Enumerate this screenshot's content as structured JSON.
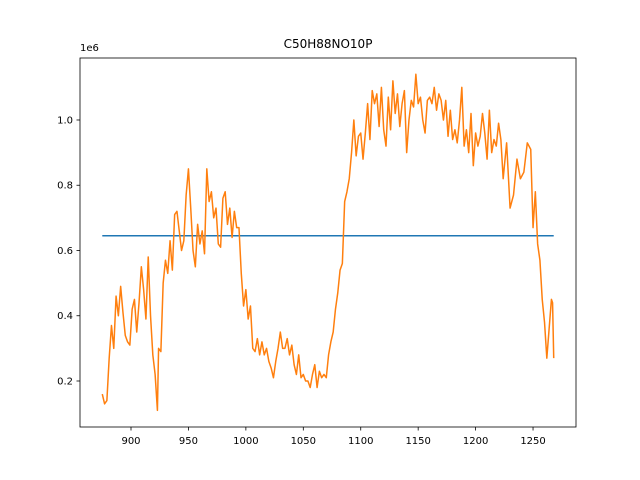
{
  "chart_data": {
    "type": "line",
    "title": "C50H88NO10P",
    "y_offset_label": "1e6",
    "xlim": [
      855.6,
      1287.4
    ],
    "xticks": [
      900,
      950,
      1000,
      1050,
      1100,
      1150,
      1200,
      1250
    ],
    "ylim": [
      0.059,
      1.19
    ],
    "yticks": [
      0.2,
      0.4,
      0.6,
      0.8,
      {
        "value": 1,
        "label": "1.0"
      }
    ],
    "grid": false,
    "series": [
      {
        "color": "#1f77b4",
        "x": [
          875,
          1268
        ],
        "values": [
          0.645,
          0.645
        ]
      },
      {
        "color": "#ff7f0e",
        "x": [
          875,
          877,
          879,
          881,
          883,
          885,
          887,
          889,
          891,
          893,
          895,
          897,
          899,
          901,
          903,
          905,
          907,
          909,
          911,
          913,
          915,
          917,
          919,
          921,
          923,
          924,
          926,
          928,
          930,
          932,
          934,
          936,
          938,
          940,
          942,
          944,
          946,
          948,
          950,
          952,
          954,
          956,
          958,
          960,
          962,
          964,
          966,
          968,
          970,
          972,
          974,
          976,
          978,
          980,
          982,
          984,
          986,
          988,
          990,
          992,
          994,
          996,
          998,
          1000,
          1002,
          1004,
          1006,
          1008,
          1010,
          1012,
          1014,
          1016,
          1018,
          1020,
          1022,
          1024,
          1026,
          1028,
          1030,
          1032,
          1034,
          1036,
          1038,
          1040,
          1042,
          1044,
          1046,
          1048,
          1050,
          1052,
          1054,
          1056,
          1058,
          1060,
          1062,
          1064,
          1066,
          1068,
          1070,
          1072,
          1074,
          1076,
          1078,
          1080,
          1082,
          1084,
          1086,
          1088,
          1090,
          1092,
          1094,
          1096,
          1098,
          1100,
          1102,
          1104,
          1106,
          1108,
          1110,
          1112,
          1114,
          1116,
          1118,
          1120,
          1122,
          1124,
          1126,
          1128,
          1130,
          1132,
          1134,
          1136,
          1138,
          1140,
          1142,
          1144,
          1146,
          1148,
          1150,
          1152,
          1154,
          1156,
          1158,
          1160,
          1162,
          1164,
          1166,
          1168,
          1170,
          1172,
          1174,
          1176,
          1178,
          1180,
          1182,
          1184,
          1186,
          1188,
          1190,
          1192,
          1194,
          1196,
          1198,
          1200,
          1202,
          1204,
          1206,
          1208,
          1210,
          1212,
          1214,
          1216,
          1218,
          1220,
          1222,
          1224,
          1227,
          1230,
          1233,
          1236,
          1239,
          1242,
          1245,
          1248,
          1250,
          1252,
          1254,
          1256,
          1258,
          1260,
          1262,
          1264,
          1266,
          1267,
          1268
        ],
        "values": [
          0.16,
          0.13,
          0.14,
          0.27,
          0.37,
          0.3,
          0.46,
          0.4,
          0.49,
          0.41,
          0.34,
          0.32,
          0.31,
          0.42,
          0.45,
          0.35,
          0.44,
          0.55,
          0.48,
          0.39,
          0.58,
          0.4,
          0.28,
          0.22,
          0.11,
          0.3,
          0.29,
          0.5,
          0.57,
          0.53,
          0.63,
          0.54,
          0.71,
          0.72,
          0.66,
          0.6,
          0.63,
          0.77,
          0.85,
          0.73,
          0.6,
          0.55,
          0.68,
          0.62,
          0.66,
          0.59,
          0.85,
          0.75,
          0.78,
          0.7,
          0.73,
          0.62,
          0.61,
          0.76,
          0.78,
          0.68,
          0.73,
          0.64,
          0.72,
          0.67,
          0.67,
          0.53,
          0.43,
          0.48,
          0.39,
          0.43,
          0.3,
          0.29,
          0.33,
          0.28,
          0.32,
          0.28,
          0.3,
          0.26,
          0.24,
          0.21,
          0.26,
          0.3,
          0.35,
          0.3,
          0.3,
          0.33,
          0.28,
          0.31,
          0.25,
          0.22,
          0.28,
          0.21,
          0.22,
          0.2,
          0.2,
          0.18,
          0.22,
          0.25,
          0.18,
          0.23,
          0.21,
          0.22,
          0.21,
          0.28,
          0.32,
          0.35,
          0.42,
          0.47,
          0.54,
          0.56,
          0.75,
          0.78,
          0.82,
          0.9,
          1.0,
          0.89,
          0.95,
          0.96,
          0.88,
          0.96,
          1.05,
          0.94,
          1.09,
          1.05,
          1.08,
          0.98,
          1.1,
          0.97,
          0.92,
          1.07,
          0.97,
          1.12,
          1.02,
          1.08,
          0.98,
          1.05,
          1.09,
          0.9,
          1.0,
          1.06,
          1.04,
          1.14,
          1.05,
          1.07,
          1.0,
          0.96,
          1.06,
          1.07,
          1.05,
          1.1,
          1.03,
          1.08,
          1.06,
          1.0,
          1.06,
          0.95,
          1.03,
          0.94,
          0.97,
          0.93,
          1.0,
          1.1,
          0.92,
          0.97,
          0.9,
          1.02,
          0.86,
          0.96,
          0.92,
          0.95,
          1.02,
          0.96,
          0.88,
          1.03,
          0.9,
          0.94,
          0.92,
          0.99,
          0.94,
          0.82,
          0.93,
          0.73,
          0.77,
          0.88,
          0.82,
          0.84,
          0.93,
          0.91,
          0.67,
          0.78,
          0.62,
          0.57,
          0.45,
          0.38,
          0.27,
          0.36,
          0.45,
          0.44,
          0.27
        ]
      }
    ]
  }
}
